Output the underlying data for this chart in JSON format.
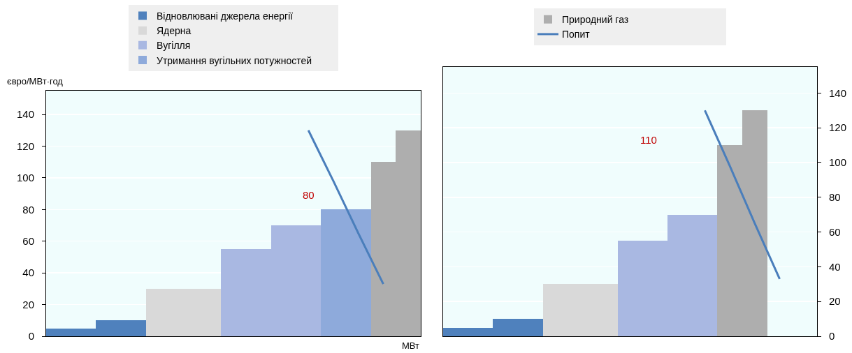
{
  "chart_data": [
    {
      "type": "bar",
      "ylabel": "євро/МВт·год",
      "xlabel": "МВт",
      "categories": [
        null,
        null,
        null,
        null,
        null,
        null,
        null,
        null,
        null,
        null,
        null,
        null,
        null,
        null,
        null
      ],
      "ylim": [
        0,
        155
      ],
      "yticks": [
        0,
        20,
        40,
        60,
        80,
        100,
        120,
        140
      ],
      "tick_labels": "y",
      "grid": "y",
      "legend": "top",
      "series": [
        {
          "name": "Відновлювані джерела енергії",
          "color": "#4f81bd",
          "values": [
            5,
            5,
            10,
            10,
            null,
            null,
            null,
            null,
            null,
            null,
            null,
            null,
            null,
            null,
            null
          ]
        },
        {
          "name": "Ядерна",
          "color": "#d9d9d9",
          "values": [
            null,
            null,
            null,
            null,
            30,
            30,
            30,
            null,
            null,
            null,
            null,
            null,
            null,
            null,
            null
          ]
        },
        {
          "name": "Вугілля",
          "color": "#a9b8e2",
          "values": [
            null,
            null,
            null,
            null,
            null,
            null,
            null,
            55,
            55,
            70,
            70,
            null,
            null,
            null,
            null
          ]
        },
        {
          "name": "Утримання вугільних потужностей",
          "color": "#8eaadb",
          "values": [
            null,
            null,
            null,
            null,
            null,
            null,
            null,
            null,
            null,
            null,
            null,
            80,
            80,
            null,
            null
          ]
        },
        {
          "color": "#aeaeae",
          "values": [
            null,
            null,
            null,
            null,
            null,
            null,
            null,
            null,
            null,
            null,
            null,
            null,
            null,
            110,
            130
          ]
        },
        {
          "type": "line",
          "color": "#4a7ebb",
          "values": [
            null,
            null,
            null,
            null,
            null,
            null,
            null,
            null,
            null,
            null,
            130,
            98,
            65,
            33,
            null
          ]
        }
      ],
      "annotations": [
        "80"
      ]
    },
    {
      "type": "bar",
      "categories": [
        null,
        null,
        null,
        null,
        null,
        null,
        null,
        null,
        null,
        null,
        null,
        null,
        null,
        null,
        null
      ],
      "ylim": [
        0,
        155
      ],
      "yticks": [
        0,
        20,
        40,
        60,
        80,
        100,
        120,
        140
      ],
      "tick_labels": "y",
      "grid": "y",
      "legend": "top",
      "series": [
        {
          "color": "#4f81bd",
          "values": [
            5,
            5,
            10,
            10,
            null,
            null,
            null,
            null,
            null,
            null,
            null,
            null,
            null,
            null,
            null
          ]
        },
        {
          "color": "#d9d9d9",
          "values": [
            null,
            null,
            null,
            null,
            30,
            30,
            30,
            null,
            null,
            null,
            null,
            null,
            null,
            null,
            null
          ]
        },
        {
          "color": "#a9b8e2",
          "values": [
            null,
            null,
            null,
            null,
            null,
            null,
            null,
            55,
            55,
            70,
            70,
            null,
            null,
            null,
            null
          ]
        },
        {
          "name": "Природний газ",
          "color": "#aeaeae",
          "values": [
            null,
            null,
            null,
            null,
            null,
            null,
            null,
            null,
            null,
            null,
            null,
            110,
            130,
            null,
            null
          ]
        },
        {
          "name": "Попит",
          "type": "line",
          "color": "#4a7ebb",
          "values": [
            null,
            null,
            null,
            null,
            null,
            null,
            null,
            null,
            null,
            null,
            130,
            98,
            65,
            33,
            null
          ]
        }
      ],
      "annotations": [
        "110"
      ]
    }
  ]
}
